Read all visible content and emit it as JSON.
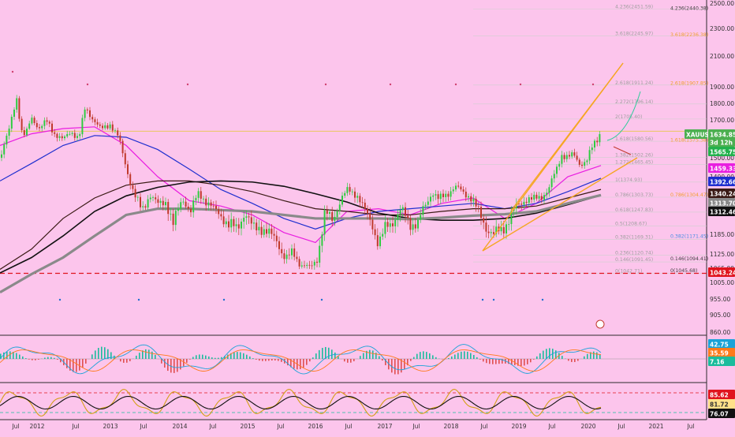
{
  "chart_data": {
    "type": "candlestick",
    "symbol": "XAUUSD",
    "price_axis": {
      "ticks": [
        "2500.00",
        "2300.00",
        "2100.00",
        "1900.00",
        "1800.00",
        "1700.00",
        "1600.00",
        "1500.00",
        "1400.00",
        "1300.00",
        "1250.00",
        "1185.00",
        "1125.00",
        "1065.00",
        "1005.00",
        "955.00",
        "905.00",
        "860.00"
      ]
    },
    "time_axis": {
      "ticks": [
        "Jul",
        "2012",
        "Jul",
        "2013",
        "Jul",
        "2014",
        "Jul",
        "2015",
        "Jul",
        "2016",
        "Jul",
        "2017",
        "Jul",
        "2018",
        "Jul",
        "2019",
        "Jul",
        "2020",
        "Jul",
        "2021",
        "Jul"
      ]
    },
    "price_badges": [
      {
        "value": "1634.85",
        "prefix": "XAUUSD",
        "bg": "#4caf50",
        "fg": "#ffffff"
      },
      {
        "value": "3d 12h",
        "bg": "#4caf50",
        "fg": "#ffffff"
      },
      {
        "value": "1565.75",
        "bg": "#22b14c",
        "fg": "#ffffff"
      },
      {
        "value": "1459.33",
        "bg": "#e91ee0",
        "fg": "#ffffff"
      },
      {
        "value": "1392.66",
        "bg": "#1f2fcf",
        "fg": "#ffffff"
      },
      {
        "value": "1340.24",
        "bg": "#3a1a14",
        "fg": "#ffffff"
      },
      {
        "value": "1313.70",
        "bg": "#8a8a8a",
        "fg": "#ffffff"
      },
      {
        "value": "1312.46",
        "bg": "#111111",
        "fg": "#ffffff"
      },
      {
        "value": "1043.24",
        "bg": "#e0141e",
        "fg": "#ffffff"
      }
    ],
    "fib_left": [
      {
        "label": "4.236(2451.59)",
        "value": 2451.59
      },
      {
        "label": "3.618(2245.97)",
        "value": 2245.97
      },
      {
        "label": "2.618(1911.24)",
        "value": 1911.24
      },
      {
        "label": "2.272(1796.14)",
        "value": 1796.14
      },
      {
        "label": "2(1705.40)",
        "value": 1705.4
      },
      {
        "label": "1.618(1580.56)",
        "value": 1580.56
      },
      {
        "label": "1.382(1502.26)",
        "value": 1502.26
      },
      {
        "label": "1.272(1465.45)",
        "value": 1465.45
      },
      {
        "label": "1(1374.93)",
        "value": 1374.93
      },
      {
        "label": "0.786(1303.73)",
        "value": 1303.73
      },
      {
        "label": "0.618(1247.83)",
        "value": 1247.83
      },
      {
        "label": "0.5(1208.67)",
        "value": 1208.67
      },
      {
        "label": "0.382(1169.31)",
        "value": 1169.31
      },
      {
        "label": "0.236(1120.74)",
        "value": 1120.74
      },
      {
        "label": "0.146(1091.45)",
        "value": 1091.45
      },
      {
        "label": "0(1042.71)",
        "value": 1042.71
      }
    ],
    "fib_right": [
      {
        "label": "4.236(2440.38)",
        "value": 2440.38
      },
      {
        "label": "3.618(2236.38)",
        "value": 2236.38
      },
      {
        "label": "2.618(1907.85)",
        "value": 1907.85
      },
      {
        "label": "1.618(1575.38)",
        "value": 1575.38
      },
      {
        "label": "0.786(1304.47)",
        "value": 1304.47
      },
      {
        "label": "0.382(1171.45)",
        "value": 1171.45
      },
      {
        "label": "0.146(1094.41)",
        "value": 1094.41
      },
      {
        "label": "0(1045.68)",
        "value": 1045.68
      }
    ],
    "price_series": [
      {
        "t": 0,
        "v": 1500
      },
      {
        "t": 10,
        "v": 1610
      },
      {
        "t": 18,
        "v": 1780
      },
      {
        "t": 22,
        "v": 1850
      },
      {
        "t": 26,
        "v": 1640
      },
      {
        "t": 32,
        "v": 1600
      },
      {
        "t": 40,
        "v": 1720
      },
      {
        "t": 50,
        "v": 1650
      },
      {
        "t": 60,
        "v": 1690
      },
      {
        "t": 70,
        "v": 1620
      },
      {
        "t": 80,
        "v": 1580
      },
      {
        "t": 90,
        "v": 1640
      },
      {
        "t": 100,
        "v": 1590
      },
      {
        "t": 108,
        "v": 1770
      },
      {
        "t": 118,
        "v": 1710
      },
      {
        "t": 128,
        "v": 1640
      },
      {
        "t": 140,
        "v": 1680
      },
      {
        "t": 150,
        "v": 1600
      },
      {
        "t": 158,
        "v": 1480
      },
      {
        "t": 165,
        "v": 1380
      },
      {
        "t": 172,
        "v": 1300
      },
      {
        "t": 180,
        "v": 1250
      },
      {
        "t": 190,
        "v": 1320
      },
      {
        "t": 200,
        "v": 1270
      },
      {
        "t": 210,
        "v": 1290
      },
      {
        "t": 220,
        "v": 1210
      },
      {
        "t": 232,
        "v": 1300
      },
      {
        "t": 242,
        "v": 1250
      },
      {
        "t": 252,
        "v": 1320
      },
      {
        "t": 262,
        "v": 1290
      },
      {
        "t": 272,
        "v": 1250
      },
      {
        "t": 282,
        "v": 1240
      },
      {
        "t": 290,
        "v": 1210
      },
      {
        "t": 300,
        "v": 1200
      },
      {
        "t": 310,
        "v": 1250
      },
      {
        "t": 320,
        "v": 1200
      },
      {
        "t": 330,
        "v": 1210
      },
      {
        "t": 342,
        "v": 1180
      },
      {
        "t": 352,
        "v": 1170
      },
      {
        "t": 362,
        "v": 1100
      },
      {
        "t": 372,
        "v": 1130
      },
      {
        "t": 382,
        "v": 1080
      },
      {
        "t": 392,
        "v": 1060
      },
      {
        "t": 402,
        "v": 1110
      },
      {
        "t": 412,
        "v": 1240
      },
      {
        "t": 422,
        "v": 1230
      },
      {
        "t": 432,
        "v": 1290
      },
      {
        "t": 442,
        "v": 1340
      },
      {
        "t": 452,
        "v": 1320
      },
      {
        "t": 462,
        "v": 1250
      },
      {
        "t": 472,
        "v": 1220
      },
      {
        "t": 480,
        "v": 1150
      },
      {
        "t": 490,
        "v": 1210
      },
      {
        "t": 500,
        "v": 1230
      },
      {
        "t": 510,
        "v": 1250
      },
      {
        "t": 520,
        "v": 1220
      },
      {
        "t": 530,
        "v": 1210
      },
      {
        "t": 540,
        "v": 1280
      },
      {
        "t": 548,
        "v": 1330
      },
      {
        "t": 556,
        "v": 1290
      },
      {
        "t": 566,
        "v": 1320
      },
      {
        "t": 576,
        "v": 1350
      },
      {
        "t": 586,
        "v": 1330
      },
      {
        "t": 596,
        "v": 1310
      },
      {
        "t": 606,
        "v": 1250
      },
      {
        "t": 616,
        "v": 1210
      },
      {
        "t": 626,
        "v": 1180
      },
      {
        "t": 636,
        "v": 1200
      },
      {
        "t": 646,
        "v": 1230
      },
      {
        "t": 656,
        "v": 1270
      },
      {
        "t": 666,
        "v": 1300
      },
      {
        "t": 676,
        "v": 1290
      },
      {
        "t": 686,
        "v": 1310
      },
      {
        "t": 696,
        "v": 1340
      },
      {
        "t": 704,
        "v": 1420
      },
      {
        "t": 712,
        "v": 1520
      },
      {
        "t": 720,
        "v": 1500
      },
      {
        "t": 728,
        "v": 1510
      },
      {
        "t": 736,
        "v": 1470
      },
      {
        "t": 744,
        "v": 1480
      },
      {
        "t": 752,
        "v": 1560
      },
      {
        "t": 758,
        "v": 1600
      },
      {
        "t": 762,
        "v": 1640
      }
    ],
    "moving_averages": [
      {
        "color": "#e91ee0",
        "points": [
          {
            "t": 0,
            "v": 1560
          },
          {
            "t": 40,
            "v": 1620
          },
          {
            "t": 80,
            "v": 1650
          },
          {
            "t": 120,
            "v": 1660
          },
          {
            "t": 160,
            "v": 1560
          },
          {
            "t": 200,
            "v": 1400
          },
          {
            "t": 240,
            "v": 1290
          },
          {
            "t": 280,
            "v": 1270
          },
          {
            "t": 320,
            "v": 1240
          },
          {
            "t": 360,
            "v": 1190
          },
          {
            "t": 400,
            "v": 1160
          },
          {
            "t": 440,
            "v": 1250
          },
          {
            "t": 480,
            "v": 1260
          },
          {
            "t": 520,
            "v": 1240
          },
          {
            "t": 560,
            "v": 1280
          },
          {
            "t": 600,
            "v": 1300
          },
          {
            "t": 640,
            "v": 1230
          },
          {
            "t": 680,
            "v": 1280
          },
          {
            "t": 720,
            "v": 1400
          },
          {
            "t": 762,
            "v": 1459.33
          }
        ]
      },
      {
        "color": "#1f2fcf",
        "points": [
          {
            "t": 0,
            "v": 1380
          },
          {
            "t": 40,
            "v": 1470
          },
          {
            "t": 80,
            "v": 1560
          },
          {
            "t": 120,
            "v": 1610
          },
          {
            "t": 160,
            "v": 1600
          },
          {
            "t": 200,
            "v": 1540
          },
          {
            "t": 240,
            "v": 1440
          },
          {
            "t": 280,
            "v": 1340
          },
          {
            "t": 320,
            "v": 1280
          },
          {
            "t": 360,
            "v": 1230
          },
          {
            "t": 400,
            "v": 1200
          },
          {
            "t": 440,
            "v": 1230
          },
          {
            "t": 480,
            "v": 1250
          },
          {
            "t": 520,
            "v": 1260
          },
          {
            "t": 560,
            "v": 1270
          },
          {
            "t": 600,
            "v": 1280
          },
          {
            "t": 640,
            "v": 1260
          },
          {
            "t": 680,
            "v": 1280
          },
          {
            "t": 720,
            "v": 1330
          },
          {
            "t": 762,
            "v": 1392.66
          }
        ]
      },
      {
        "color": "#3a1a14",
        "points": [
          {
            "t": 0,
            "v": 1060
          },
          {
            "t": 40,
            "v": 1140
          },
          {
            "t": 80,
            "v": 1230
          },
          {
            "t": 120,
            "v": 1300
          },
          {
            "t": 160,
            "v": 1360
          },
          {
            "t": 200,
            "v": 1380
          },
          {
            "t": 240,
            "v": 1380
          },
          {
            "t": 280,
            "v": 1360
          },
          {
            "t": 320,
            "v": 1330
          },
          {
            "t": 360,
            "v": 1290
          },
          {
            "t": 400,
            "v": 1260
          },
          {
            "t": 440,
            "v": 1250
          },
          {
            "t": 480,
            "v": 1240
          },
          {
            "t": 520,
            "v": 1240
          },
          {
            "t": 560,
            "v": 1250
          },
          {
            "t": 600,
            "v": 1260
          },
          {
            "t": 640,
            "v": 1260
          },
          {
            "t": 680,
            "v": 1270
          },
          {
            "t": 720,
            "v": 1300
          },
          {
            "t": 762,
            "v": 1340.24
          }
        ]
      },
      {
        "color": "#111111",
        "points": [
          {
            "t": 0,
            "v": 1045
          },
          {
            "t": 40,
            "v": 1110
          },
          {
            "t": 80,
            "v": 1180
          },
          {
            "t": 120,
            "v": 1250
          },
          {
            "t": 160,
            "v": 1310
          },
          {
            "t": 200,
            "v": 1350
          },
          {
            "t": 240,
            "v": 1375
          },
          {
            "t": 280,
            "v": 1380
          },
          {
            "t": 320,
            "v": 1375
          },
          {
            "t": 360,
            "v": 1355
          },
          {
            "t": 400,
            "v": 1320
          },
          {
            "t": 440,
            "v": 1285
          },
          {
            "t": 480,
            "v": 1245
          },
          {
            "t": 520,
            "v": 1230
          },
          {
            "t": 560,
            "v": 1225
          },
          {
            "t": 600,
            "v": 1225
          },
          {
            "t": 640,
            "v": 1230
          },
          {
            "t": 680,
            "v": 1245
          },
          {
            "t": 720,
            "v": 1275
          },
          {
            "t": 762,
            "v": 1312.46
          }
        ]
      },
      {
        "color": "#8a8a8a",
        "points": [
          {
            "t": 0,
            "v": 975
          },
          {
            "t": 40,
            "v": 1040
          },
          {
            "t": 80,
            "v": 1110
          },
          {
            "t": 120,
            "v": 1180
          },
          {
            "t": 160,
            "v": 1240
          },
          {
            "t": 200,
            "v": 1260
          },
          {
            "t": 240,
            "v": 1260
          },
          {
            "t": 280,
            "v": 1255
          },
          {
            "t": 320,
            "v": 1250
          },
          {
            "t": 360,
            "v": 1240
          },
          {
            "t": 400,
            "v": 1230
          },
          {
            "t": 440,
            "v": 1230
          },
          {
            "t": 480,
            "v": 1230
          },
          {
            "t": 520,
            "v": 1228
          },
          {
            "t": 560,
            "v": 1232
          },
          {
            "t": 600,
            "v": 1238
          },
          {
            "t": 640,
            "v": 1242
          },
          {
            "t": 680,
            "v": 1250
          },
          {
            "t": 720,
            "v": 1280
          },
          {
            "t": 762,
            "v": 1313.7
          }
        ]
      }
    ],
    "horizontal_levels": [
      {
        "value": 1043.24,
        "color": "#e0141e",
        "style": "dashed"
      },
      {
        "value": 1634.85,
        "color": "#e6c84a",
        "style": "solid"
      }
    ],
    "indicators": [
      {
        "name": "oscillator_1",
        "badges": [
          {
            "value": "42.75",
            "bg": "#1aa3d8",
            "fg": "#ffffff"
          },
          {
            "value": "35.59",
            "bg": "#ff7a1a",
            "fg": "#ffffff"
          },
          {
            "value": "7.16",
            "bg": "#1abc9c",
            "fg": "#ffffff"
          }
        ]
      },
      {
        "name": "oscillator_2",
        "badges": [
          {
            "value": "85.62",
            "bg": "#e0141e",
            "fg": "#ffffff"
          },
          {
            "value": "81.72",
            "bg": "#ffe08a",
            "fg": "#333333"
          },
          {
            "value": "76.07",
            "bg": "#111111",
            "fg": "#ffffff"
          }
        ]
      }
    ]
  }
}
